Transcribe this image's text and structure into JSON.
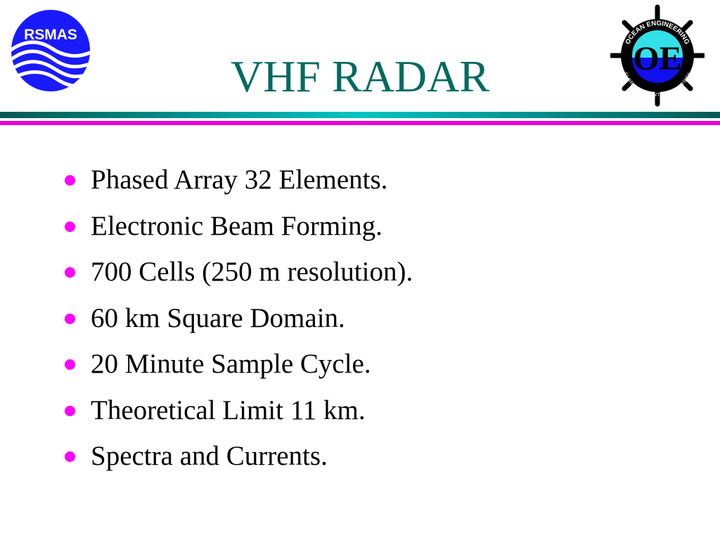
{
  "slide": {
    "title": "VHF RADAR",
    "logos": {
      "left": {
        "text": "RSMAS",
        "icon": "rsmas-waves-logo",
        "color": "#1a1aff"
      },
      "right": {
        "text_top": "OCEAN ENGINEERING",
        "text_bottom": "FLORIDA ATLANTIC UNIVERSITY",
        "monogram": "OE",
        "icon": "ship-wheel-logo"
      }
    },
    "bullets": [
      {
        "text": "Phased Array 32 Elements."
      },
      {
        "text": "Electronic Beam Forming."
      },
      {
        "text": "700 Cells (250 m resolution)."
      },
      {
        "text": "60 km Square Domain."
      },
      {
        "text": "20 Minute Sample Cycle."
      },
      {
        "text": "Theoretical Limit 11 km."
      },
      {
        "text": "Spectra and Currents."
      }
    ],
    "colors": {
      "title": "#006b60",
      "bullet": "#ff00ff",
      "rule_teal": "#00c4c4",
      "rule_magenta": "#e600d8"
    }
  }
}
